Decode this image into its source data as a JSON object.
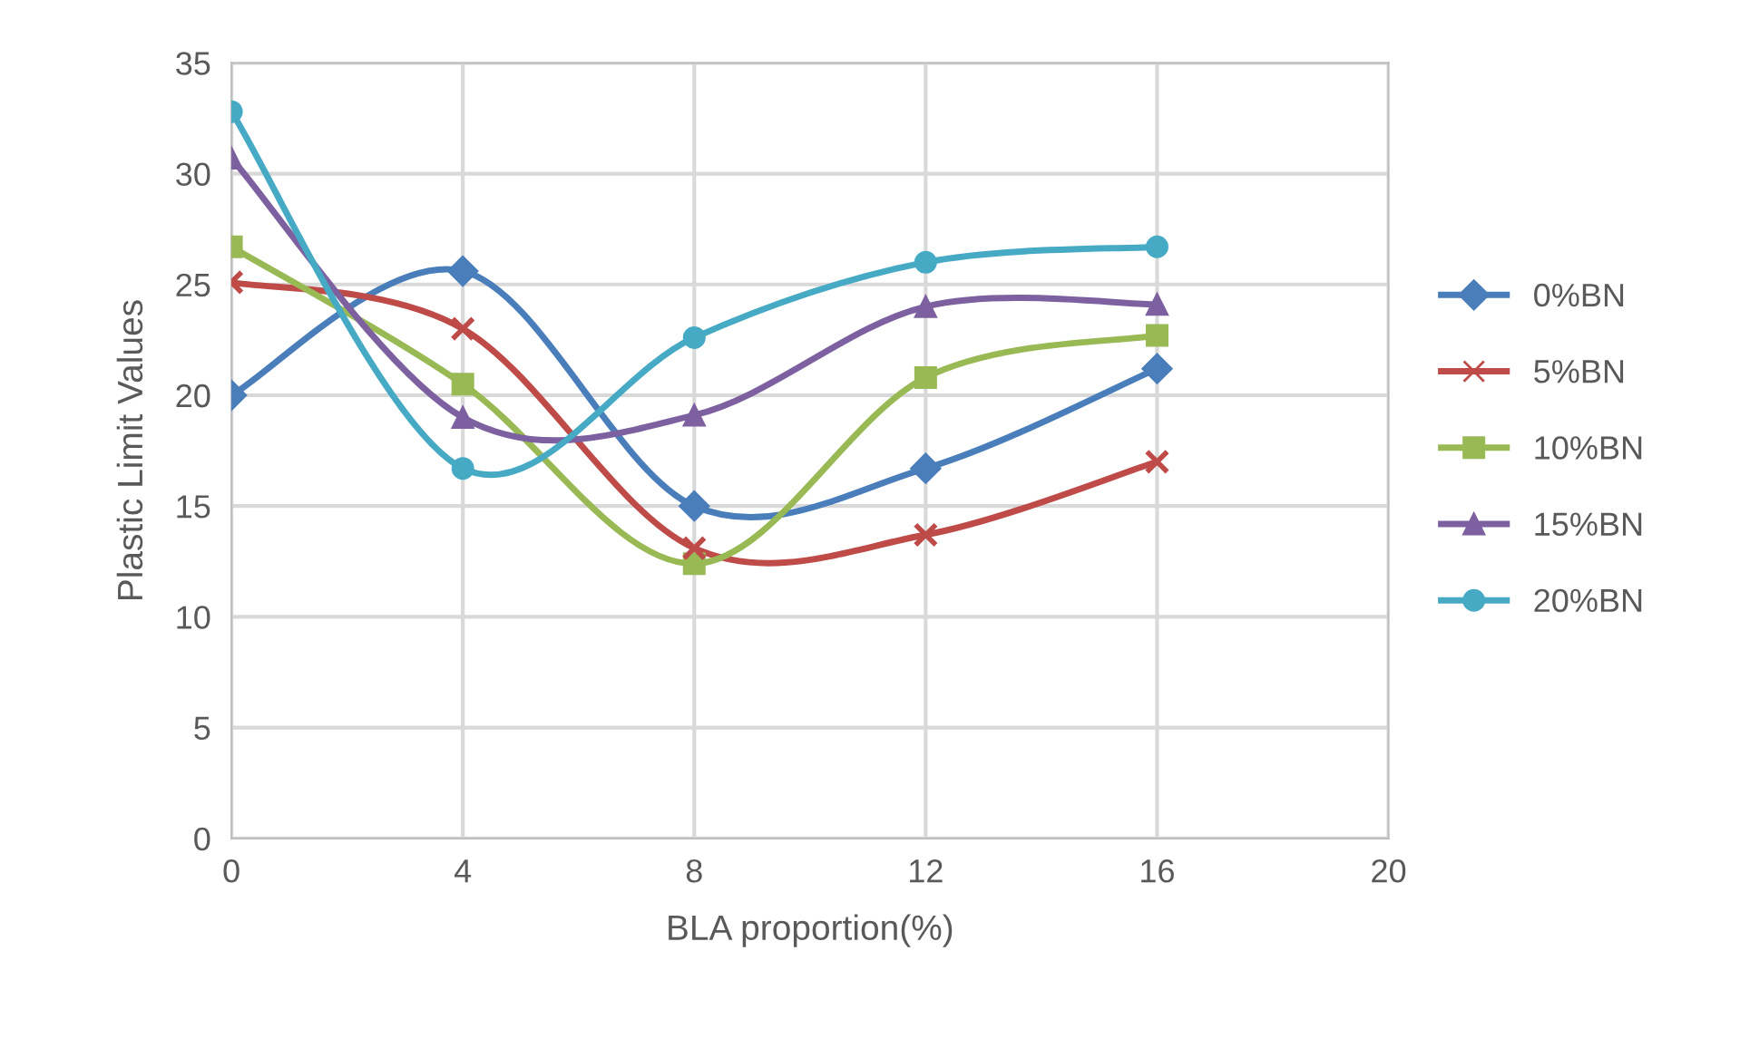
{
  "chart_data": {
    "type": "line",
    "xlabel": "BLA proportion(%)",
    "ylabel": "Plastic Limit Values",
    "x": [
      0,
      4,
      8,
      12,
      16
    ],
    "series": [
      {
        "name": "0%BN",
        "color": "#4a7ebb",
        "marker": "diamond",
        "values": [
          20.0,
          25.6,
          15.0,
          16.7,
          21.2
        ]
      },
      {
        "name": "5%BN",
        "color": "#be4b48",
        "marker": "cross",
        "values": [
          25.1,
          23.0,
          13.1,
          13.7,
          17.0
        ]
      },
      {
        "name": "10%BN",
        "color": "#98b954",
        "marker": "square",
        "values": [
          26.7,
          20.5,
          12.4,
          20.8,
          22.7
        ]
      },
      {
        "name": "15%BN",
        "color": "#7d60a0",
        "marker": "triangle",
        "values": [
          30.7,
          19.0,
          19.1,
          24.0,
          24.1
        ]
      },
      {
        "name": "20%BN",
        "color": "#46aac5",
        "marker": "circle",
        "values": [
          32.8,
          16.7,
          22.6,
          26.0,
          26.7
        ]
      }
    ],
    "xlim": [
      0,
      20
    ],
    "xticks": [
      0,
      4,
      8,
      12,
      16,
      20
    ],
    "ylim": [
      0,
      35
    ],
    "yticks": [
      0,
      5,
      10,
      15,
      20,
      25,
      30,
      35
    ],
    "grid": true,
    "legend": "right",
    "line_style": "solid"
  }
}
